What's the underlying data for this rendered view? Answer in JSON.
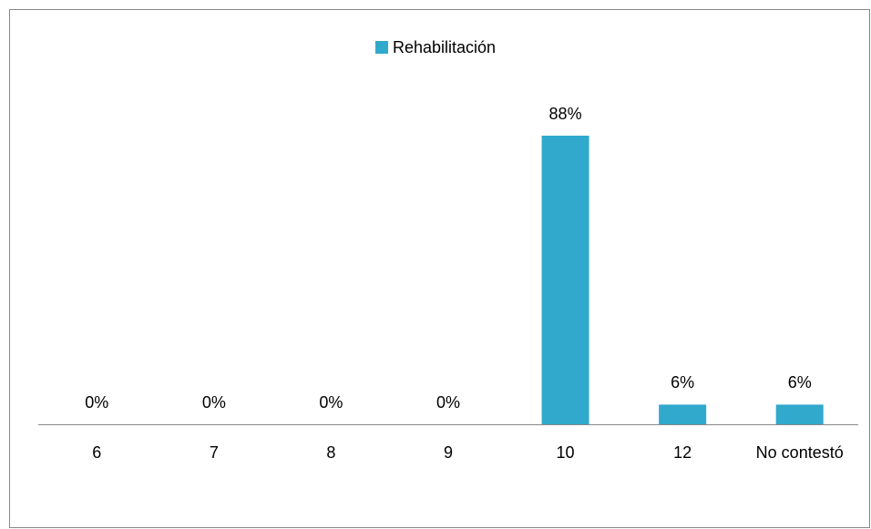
{
  "chart_data": {
    "type": "bar",
    "categories": [
      "6",
      "7",
      "8",
      "9",
      "10",
      "12",
      "No contestó"
    ],
    "series": [
      {
        "name": "Rehabilitación",
        "color": "#31a9cc",
        "values": [
          0,
          0,
          0,
          0,
          88,
          6,
          6
        ],
        "value_labels": [
          "0%",
          "0%",
          "0%",
          "0%",
          "88%",
          "6%",
          "6%"
        ]
      }
    ],
    "legend": "top"
  }
}
